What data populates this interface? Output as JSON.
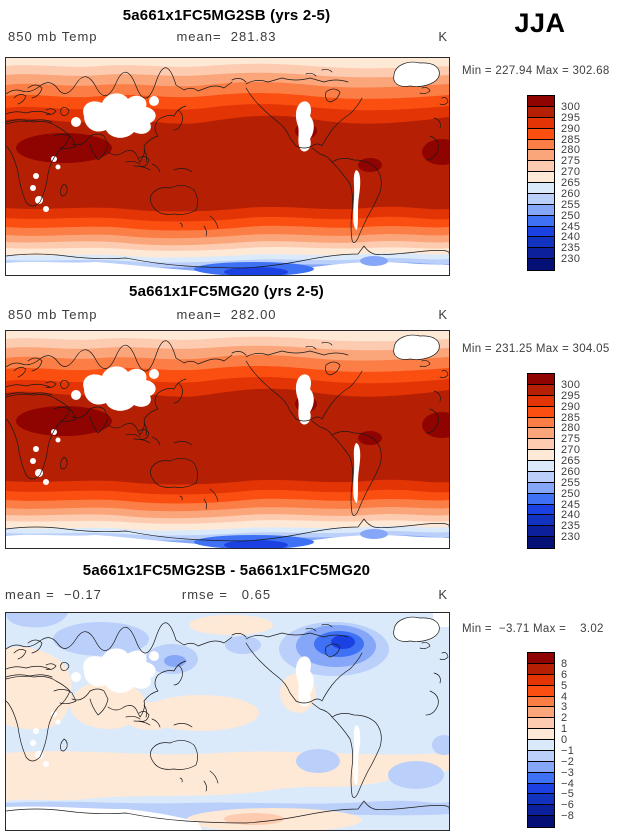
{
  "season": "JJA",
  "palette": [
    "#8f0300",
    "#b51f04",
    "#e23404",
    "#fb4f11",
    "#fb7e46",
    "#fba57b",
    "#fdcbb0",
    "#fee8d6",
    "#dbeafb",
    "#bacffa",
    "#86a7f7",
    "#3e71f3",
    "#1b41e3",
    "#1133c0",
    "#0b209a",
    "#051077"
  ],
  "panels": [
    {
      "title": "5a661x1FC5MG2SB (yrs 2-5)",
      "left_label": "850 mb Temp",
      "center_label": "mean=  281.83",
      "unit": "K",
      "stats": "Min = 227.94 Max = 302.68",
      "colorbar_labels": [
        "300",
        "295",
        "290",
        "285",
        "280",
        "275",
        "270",
        "265",
        "260",
        "255",
        "250",
        "245",
        "240",
        "235",
        "230"
      ]
    },
    {
      "title": "5a661x1FC5MG20 (yrs 2-5)",
      "left_label": "850 mb Temp",
      "center_label": "mean=  282.00",
      "unit": "K",
      "stats": "Min = 231.25 Max = 304.05",
      "colorbar_labels": [
        "300",
        "295",
        "290",
        "285",
        "280",
        "275",
        "270",
        "265",
        "260",
        "255",
        "250",
        "245",
        "240",
        "235",
        "230"
      ]
    },
    {
      "title": "5a661x1FC5MG2SB - 5a661x1FC5MG20",
      "left_label": "mean =  −0.17",
      "center_label": "rmse =   0.65",
      "unit": "K",
      "stats": "Min =  −3.71 Max =    3.02",
      "colorbar_labels": [
        "8",
        "6",
        "5",
        "4",
        "3",
        "2",
        "1",
        "0",
        "−1",
        "−2",
        "−3",
        "−4",
        "−5",
        "−6",
        "−8"
      ]
    }
  ],
  "chart_data": [
    {
      "type": "heatmap",
      "subtype": "filled-contour world map",
      "title": "5a661x1FC5MG2SB (yrs 2-5)",
      "variable": "850 mb Temp",
      "season": "JJA",
      "units": "K",
      "mean": 281.83,
      "min": 227.94,
      "max": 302.68,
      "contour_levels": [
        230,
        235,
        240,
        245,
        250,
        255,
        260,
        265,
        270,
        275,
        280,
        285,
        290,
        295,
        300
      ],
      "legend_position": "right",
      "palette_order": "red(hot,top) to blue(cold,bottom)"
    },
    {
      "type": "heatmap",
      "subtype": "filled-contour world map",
      "title": "5a661x1FC5MG20 (yrs 2-5)",
      "variable": "850 mb Temp",
      "season": "JJA",
      "units": "K",
      "mean": 282.0,
      "min": 231.25,
      "max": 304.05,
      "contour_levels": [
        230,
        235,
        240,
        245,
        250,
        255,
        260,
        265,
        270,
        275,
        280,
        285,
        290,
        295,
        300
      ],
      "legend_position": "right",
      "palette_order": "red(hot,top) to blue(cold,bottom)"
    },
    {
      "type": "heatmap",
      "subtype": "filled-contour world map difference",
      "title": "5a661x1FC5MG2SB - 5a661x1FC5MG20",
      "variable": "850 mb Temp difference",
      "season": "JJA",
      "units": "K",
      "mean": -0.17,
      "rmse": 0.65,
      "min": -3.71,
      "max": 3.02,
      "contour_levels": [
        -8,
        -6,
        -5,
        -4,
        -3,
        -2,
        -1,
        0,
        1,
        2,
        3,
        4,
        5,
        6,
        8
      ],
      "legend_position": "right",
      "palette_order": "red(positive,top) to blue(negative,bottom)"
    }
  ]
}
